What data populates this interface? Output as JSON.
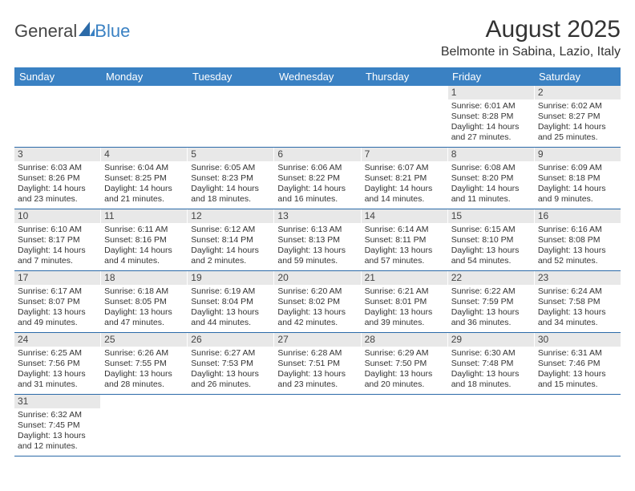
{
  "logo": {
    "part1": "General",
    "part2": "Blue"
  },
  "title": "August 2025",
  "location": "Belmonte in Sabina, Lazio, Italy",
  "colors": {
    "header_bg": "#3a81c3",
    "header_text": "#ffffff",
    "daynum_bg": "#e8e8e8",
    "week_border": "#2b6aa8",
    "text": "#333333"
  },
  "weekdays": [
    "Sunday",
    "Monday",
    "Tuesday",
    "Wednesday",
    "Thursday",
    "Friday",
    "Saturday"
  ],
  "weeks": [
    [
      {
        "n": "",
        "sr": "",
        "ss": "",
        "dl1": "",
        "dl2": ""
      },
      {
        "n": "",
        "sr": "",
        "ss": "",
        "dl1": "",
        "dl2": ""
      },
      {
        "n": "",
        "sr": "",
        "ss": "",
        "dl1": "",
        "dl2": ""
      },
      {
        "n": "",
        "sr": "",
        "ss": "",
        "dl1": "",
        "dl2": ""
      },
      {
        "n": "",
        "sr": "",
        "ss": "",
        "dl1": "",
        "dl2": ""
      },
      {
        "n": "1",
        "sr": "Sunrise: 6:01 AM",
        "ss": "Sunset: 8:28 PM",
        "dl1": "Daylight: 14 hours",
        "dl2": "and 27 minutes."
      },
      {
        "n": "2",
        "sr": "Sunrise: 6:02 AM",
        "ss": "Sunset: 8:27 PM",
        "dl1": "Daylight: 14 hours",
        "dl2": "and 25 minutes."
      }
    ],
    [
      {
        "n": "3",
        "sr": "Sunrise: 6:03 AM",
        "ss": "Sunset: 8:26 PM",
        "dl1": "Daylight: 14 hours",
        "dl2": "and 23 minutes."
      },
      {
        "n": "4",
        "sr": "Sunrise: 6:04 AM",
        "ss": "Sunset: 8:25 PM",
        "dl1": "Daylight: 14 hours",
        "dl2": "and 21 minutes."
      },
      {
        "n": "5",
        "sr": "Sunrise: 6:05 AM",
        "ss": "Sunset: 8:23 PM",
        "dl1": "Daylight: 14 hours",
        "dl2": "and 18 minutes."
      },
      {
        "n": "6",
        "sr": "Sunrise: 6:06 AM",
        "ss": "Sunset: 8:22 PM",
        "dl1": "Daylight: 14 hours",
        "dl2": "and 16 minutes."
      },
      {
        "n": "7",
        "sr": "Sunrise: 6:07 AM",
        "ss": "Sunset: 8:21 PM",
        "dl1": "Daylight: 14 hours",
        "dl2": "and 14 minutes."
      },
      {
        "n": "8",
        "sr": "Sunrise: 6:08 AM",
        "ss": "Sunset: 8:20 PM",
        "dl1": "Daylight: 14 hours",
        "dl2": "and 11 minutes."
      },
      {
        "n": "9",
        "sr": "Sunrise: 6:09 AM",
        "ss": "Sunset: 8:18 PM",
        "dl1": "Daylight: 14 hours",
        "dl2": "and 9 minutes."
      }
    ],
    [
      {
        "n": "10",
        "sr": "Sunrise: 6:10 AM",
        "ss": "Sunset: 8:17 PM",
        "dl1": "Daylight: 14 hours",
        "dl2": "and 7 minutes."
      },
      {
        "n": "11",
        "sr": "Sunrise: 6:11 AM",
        "ss": "Sunset: 8:16 PM",
        "dl1": "Daylight: 14 hours",
        "dl2": "and 4 minutes."
      },
      {
        "n": "12",
        "sr": "Sunrise: 6:12 AM",
        "ss": "Sunset: 8:14 PM",
        "dl1": "Daylight: 14 hours",
        "dl2": "and 2 minutes."
      },
      {
        "n": "13",
        "sr": "Sunrise: 6:13 AM",
        "ss": "Sunset: 8:13 PM",
        "dl1": "Daylight: 13 hours",
        "dl2": "and 59 minutes."
      },
      {
        "n": "14",
        "sr": "Sunrise: 6:14 AM",
        "ss": "Sunset: 8:11 PM",
        "dl1": "Daylight: 13 hours",
        "dl2": "and 57 minutes."
      },
      {
        "n": "15",
        "sr": "Sunrise: 6:15 AM",
        "ss": "Sunset: 8:10 PM",
        "dl1": "Daylight: 13 hours",
        "dl2": "and 54 minutes."
      },
      {
        "n": "16",
        "sr": "Sunrise: 6:16 AM",
        "ss": "Sunset: 8:08 PM",
        "dl1": "Daylight: 13 hours",
        "dl2": "and 52 minutes."
      }
    ],
    [
      {
        "n": "17",
        "sr": "Sunrise: 6:17 AM",
        "ss": "Sunset: 8:07 PM",
        "dl1": "Daylight: 13 hours",
        "dl2": "and 49 minutes."
      },
      {
        "n": "18",
        "sr": "Sunrise: 6:18 AM",
        "ss": "Sunset: 8:05 PM",
        "dl1": "Daylight: 13 hours",
        "dl2": "and 47 minutes."
      },
      {
        "n": "19",
        "sr": "Sunrise: 6:19 AM",
        "ss": "Sunset: 8:04 PM",
        "dl1": "Daylight: 13 hours",
        "dl2": "and 44 minutes."
      },
      {
        "n": "20",
        "sr": "Sunrise: 6:20 AM",
        "ss": "Sunset: 8:02 PM",
        "dl1": "Daylight: 13 hours",
        "dl2": "and 42 minutes."
      },
      {
        "n": "21",
        "sr": "Sunrise: 6:21 AM",
        "ss": "Sunset: 8:01 PM",
        "dl1": "Daylight: 13 hours",
        "dl2": "and 39 minutes."
      },
      {
        "n": "22",
        "sr": "Sunrise: 6:22 AM",
        "ss": "Sunset: 7:59 PM",
        "dl1": "Daylight: 13 hours",
        "dl2": "and 36 minutes."
      },
      {
        "n": "23",
        "sr": "Sunrise: 6:24 AM",
        "ss": "Sunset: 7:58 PM",
        "dl1": "Daylight: 13 hours",
        "dl2": "and 34 minutes."
      }
    ],
    [
      {
        "n": "24",
        "sr": "Sunrise: 6:25 AM",
        "ss": "Sunset: 7:56 PM",
        "dl1": "Daylight: 13 hours",
        "dl2": "and 31 minutes."
      },
      {
        "n": "25",
        "sr": "Sunrise: 6:26 AM",
        "ss": "Sunset: 7:55 PM",
        "dl1": "Daylight: 13 hours",
        "dl2": "and 28 minutes."
      },
      {
        "n": "26",
        "sr": "Sunrise: 6:27 AM",
        "ss": "Sunset: 7:53 PM",
        "dl1": "Daylight: 13 hours",
        "dl2": "and 26 minutes."
      },
      {
        "n": "27",
        "sr": "Sunrise: 6:28 AM",
        "ss": "Sunset: 7:51 PM",
        "dl1": "Daylight: 13 hours",
        "dl2": "and 23 minutes."
      },
      {
        "n": "28",
        "sr": "Sunrise: 6:29 AM",
        "ss": "Sunset: 7:50 PM",
        "dl1": "Daylight: 13 hours",
        "dl2": "and 20 minutes."
      },
      {
        "n": "29",
        "sr": "Sunrise: 6:30 AM",
        "ss": "Sunset: 7:48 PM",
        "dl1": "Daylight: 13 hours",
        "dl2": "and 18 minutes."
      },
      {
        "n": "30",
        "sr": "Sunrise: 6:31 AM",
        "ss": "Sunset: 7:46 PM",
        "dl1": "Daylight: 13 hours",
        "dl2": "and 15 minutes."
      }
    ],
    [
      {
        "n": "31",
        "sr": "Sunrise: 6:32 AM",
        "ss": "Sunset: 7:45 PM",
        "dl1": "Daylight: 13 hours",
        "dl2": "and 12 minutes."
      },
      {
        "n": "",
        "sr": "",
        "ss": "",
        "dl1": "",
        "dl2": ""
      },
      {
        "n": "",
        "sr": "",
        "ss": "",
        "dl1": "",
        "dl2": ""
      },
      {
        "n": "",
        "sr": "",
        "ss": "",
        "dl1": "",
        "dl2": ""
      },
      {
        "n": "",
        "sr": "",
        "ss": "",
        "dl1": "",
        "dl2": ""
      },
      {
        "n": "",
        "sr": "",
        "ss": "",
        "dl1": "",
        "dl2": ""
      },
      {
        "n": "",
        "sr": "",
        "ss": "",
        "dl1": "",
        "dl2": ""
      }
    ]
  ]
}
